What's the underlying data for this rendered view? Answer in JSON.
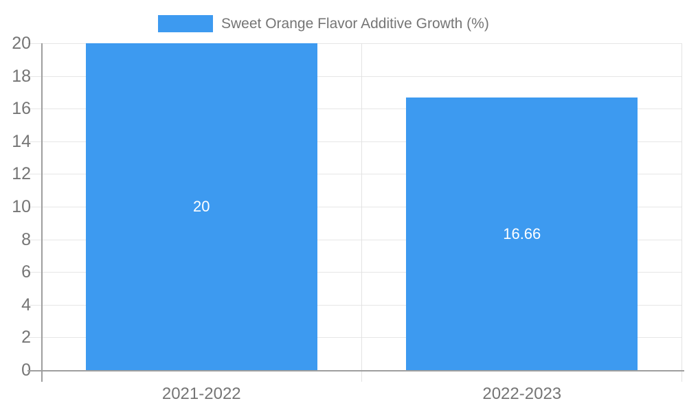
{
  "chart_data": {
    "type": "bar",
    "title": "Sweet Orange Flavor Additive Growth (%)",
    "categories": [
      "2021-2022",
      "2022-2023"
    ],
    "series": [
      {
        "name": "Sweet Orange Flavor Additive Growth (%)",
        "values": [
          20,
          16.66
        ]
      }
    ],
    "bar_labels": [
      "20",
      "16.66"
    ],
    "xlabel": "",
    "ylabel": "",
    "ylim": [
      0,
      20
    ],
    "yticks": [
      0,
      2,
      4,
      6,
      8,
      10,
      12,
      14,
      16,
      18,
      20
    ],
    "grid": true,
    "legend_position": "top-center",
    "bar_color": "#3D9AF0",
    "bar_label_color": "#ffffff",
    "axis_text_color": "#757575",
    "gridline_color": "#e6e6e6",
    "axis_line_color": "#9e9e9e",
    "background_color": "#ffffff"
  }
}
